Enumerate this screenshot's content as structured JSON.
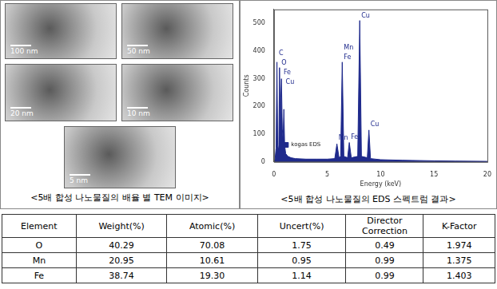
{
  "tem": {
    "caption": "<5배 합성 나노물질의 배율 별 TEM 이미지>",
    "images": [
      {
        "scale_bar": "100 nm"
      },
      {
        "scale_bar": "50 nm"
      },
      {
        "scale_bar": "20 nm"
      },
      {
        "scale_bar": "10 nm"
      },
      {
        "scale_bar": "5 nm"
      }
    ]
  },
  "eds_caption": "<5배 합성 나노물질의 EDS 스펙트럼 결과>",
  "chart_data": {
    "type": "line",
    "x_label": "Energy (keV)",
    "y_label": "Counts",
    "x": [
      0,
      0.1,
      0.2,
      0.28,
      0.35,
      0.45,
      0.52,
      0.6,
      0.64,
      0.7,
      0.78,
      0.85,
      0.93,
      1.0,
      1.1,
      1.3,
      1.6,
      2,
      3,
      4,
      5,
      5.7,
      5.9,
      6.1,
      6.25,
      6.4,
      6.55,
      6.9,
      7.06,
      7.25,
      7.85,
      8.04,
      8.2,
      8.75,
      8.9,
      9.05,
      10,
      12,
      15,
      17,
      20
    ],
    "series": [
      {
        "name": "kogas EDS",
        "color": "#1f2a8c",
        "values": [
          0,
          10,
          50,
          360,
          60,
          40,
          340,
          120,
          230,
          300,
          120,
          80,
          190,
          60,
          30,
          20,
          15,
          12,
          10,
          10,
          10,
          12,
          65,
          15,
          20,
          360,
          20,
          15,
          70,
          15,
          20,
          510,
          20,
          15,
          115,
          12,
          8,
          6,
          4,
          3,
          2
        ]
      }
    ],
    "xlim": [
      0,
      20
    ],
    "xticks": [
      0,
      5,
      10,
      15,
      20
    ],
    "ylim": [
      0,
      550
    ],
    "yticks": [
      0,
      100,
      200,
      300,
      400,
      500
    ],
    "grid": false,
    "legend": "top-right",
    "annotations": [
      {
        "text": "C",
        "x": 0.3,
        "y": 390
      },
      {
        "text": "O",
        "x": 0.55,
        "y": 358
      },
      {
        "text": "Fe",
        "x": 0.75,
        "y": 322
      },
      {
        "text": "Cu",
        "x": 0.95,
        "y": 288
      },
      {
        "text": "Mn",
        "x": 6.4,
        "y": 410
      },
      {
        "text": "Fe",
        "x": 6.4,
        "y": 378
      },
      {
        "text": "Mn",
        "x": 5.9,
        "y": 85
      },
      {
        "text": "Fe",
        "x": 7.06,
        "y": 90
      },
      {
        "text": "Cu",
        "x": 8.04,
        "y": 528
      },
      {
        "text": "Cu",
        "x": 8.9,
        "y": 135
      }
    ]
  },
  "table": {
    "header": [
      "Element",
      "Weight(%)",
      "Atomic(%)",
      "Uncert(%)",
      "Director Correction",
      "K-Factor"
    ],
    "rows": [
      [
        "O",
        "40.29",
        "70.08",
        "1.75",
        "0.49",
        "1.974"
      ],
      [
        "Mn",
        "20.95",
        "10.61",
        "0.95",
        "0.99",
        "1.375"
      ],
      [
        "Fe",
        "38.74",
        "19.30",
        "1.14",
        "0.99",
        "1.403"
      ]
    ]
  }
}
